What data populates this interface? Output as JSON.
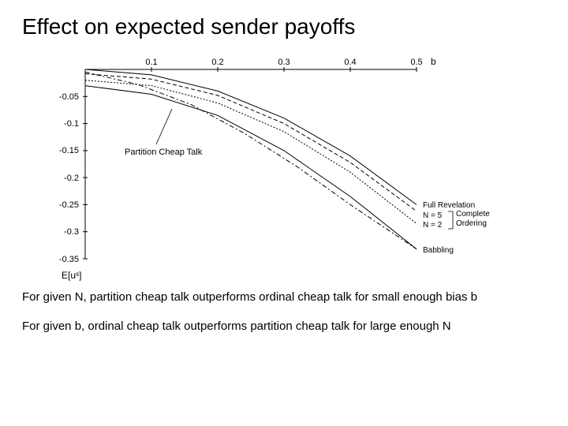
{
  "title": "Effect on expected sender payoffs",
  "chart": {
    "type": "line",
    "background_color": "#ffffff",
    "axis_color": "#000000",
    "tick_font_size": 11,
    "label_font_size": 12,
    "xlabel": "b",
    "ylabel": "E[uˢ]",
    "xlim": [
      0,
      0.5
    ],
    "ylim": [
      -0.35,
      0
    ],
    "xticks": [
      0.1,
      0.2,
      0.3,
      0.4,
      0.5
    ],
    "yticks": [
      -0.05,
      -0.1,
      -0.15,
      -0.2,
      -0.25,
      -0.3,
      -0.35
    ],
    "curves": [
      {
        "name": "full_revelation",
        "data": [
          [
            0,
            0
          ],
          [
            0.1,
            -0.01
          ],
          [
            0.2,
            -0.04
          ],
          [
            0.3,
            -0.09
          ],
          [
            0.4,
            -0.16
          ],
          [
            0.5,
            -0.25
          ]
        ],
        "dash": "",
        "width": 1
      },
      {
        "name": "n5",
        "data": [
          [
            0,
            -0.008
          ],
          [
            0.1,
            -0.018
          ],
          [
            0.2,
            -0.048
          ],
          [
            0.3,
            -0.1
          ],
          [
            0.4,
            -0.172
          ],
          [
            0.5,
            -0.262
          ]
        ],
        "dash": "5,3",
        "width": 1
      },
      {
        "name": "n2",
        "data": [
          [
            0,
            -0.02
          ],
          [
            0.1,
            -0.03
          ],
          [
            0.2,
            -0.062
          ],
          [
            0.3,
            -0.115
          ],
          [
            0.4,
            -0.19
          ],
          [
            0.5,
            -0.285
          ]
        ],
        "dash": "2,2",
        "width": 1
      },
      {
        "name": "partition",
        "data": [
          [
            0,
            -0.005
          ],
          [
            0.08,
            -0.028
          ],
          [
            0.16,
            -0.065
          ],
          [
            0.24,
            -0.118
          ],
          [
            0.32,
            -0.18
          ],
          [
            0.4,
            -0.25
          ],
          [
            0.5,
            -0.332
          ]
        ],
        "dash": "6,3,2,3",
        "width": 1
      },
      {
        "name": "babbling",
        "data": [
          [
            0,
            -0.03
          ],
          [
            0.1,
            -0.046
          ],
          [
            0.2,
            -0.085
          ],
          [
            0.3,
            -0.15
          ],
          [
            0.4,
            -0.235
          ],
          [
            0.5,
            -0.332
          ]
        ],
        "dash": "",
        "width": 1
      }
    ],
    "annotations": {
      "partition_label": "Partition Cheap Talk",
      "full_revelation": "Full Revelation",
      "n5": "N = 5",
      "n2": "N = 2",
      "complete_ordering": "Complete\nOrdering",
      "babbling": "Babbling"
    }
  },
  "body1": "For given N, partition cheap talk outperforms ordinal cheap talk for small enough bias b",
  "body2": "For given b, ordinal cheap talk outperforms partition cheap talk for large enough N"
}
